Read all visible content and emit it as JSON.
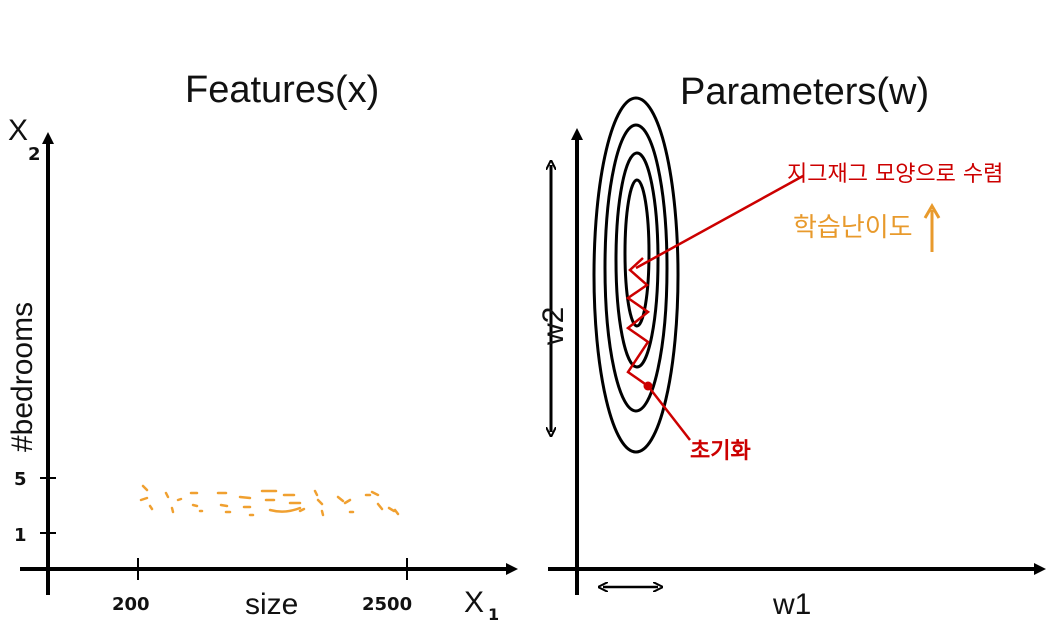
{
  "left_panel": {
    "title": "Features(x)",
    "y_axis_label": "#bedrooms",
    "y_axis_symbol": "X",
    "y_axis_subscript": "2",
    "x_axis_label": "size",
    "x_axis_symbol": "X",
    "x_axis_subscript": "1",
    "x_ticks": [
      "200",
      "2500"
    ],
    "y_ticks": [
      "5",
      "1"
    ],
    "scatter_color": "#f0a030"
  },
  "right_panel": {
    "title": "Parameters(w)",
    "y_axis_label": "w2",
    "x_axis_label": "w1",
    "zigzag_annotation": "지그재그 모양으로 수렴",
    "init_annotation": "초기화",
    "difficulty_annotation": "학습난이도",
    "difficulty_arrow": "↑",
    "annotation_color": "#cc0000",
    "difficulty_color": "#e89a2c"
  }
}
